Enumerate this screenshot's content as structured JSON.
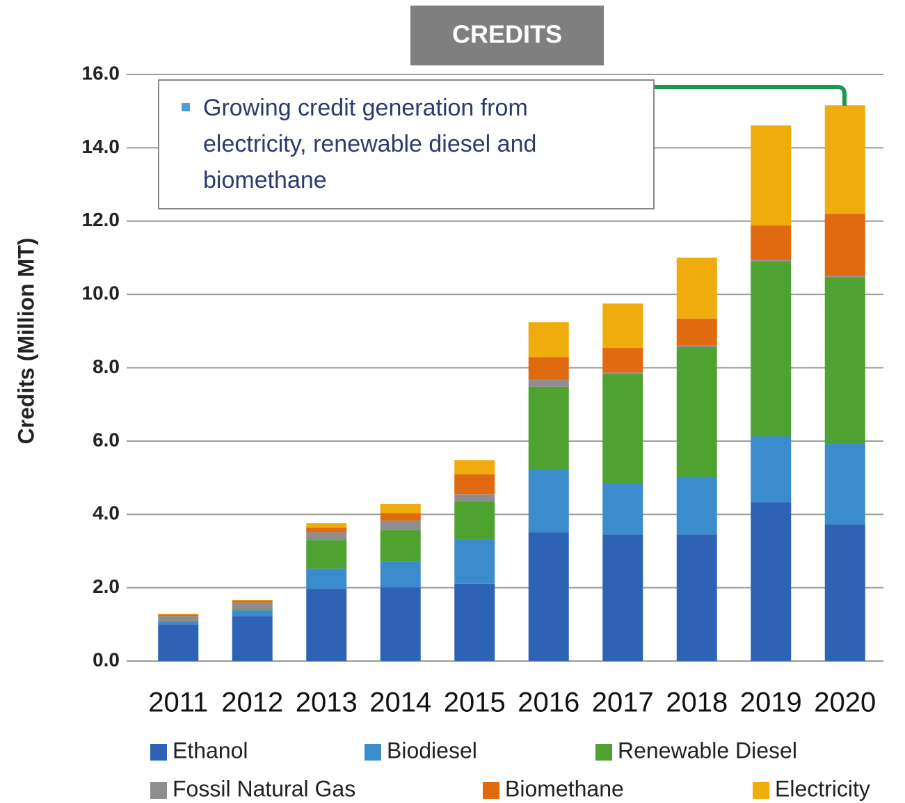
{
  "chart_data": {
    "type": "stacked_bar",
    "title": "CREDITS",
    "ylabel": "Credits (Million MT)",
    "annotation": [
      "Growing credit generation from",
      "electricity, renewable diesel and",
      "biomethane"
    ],
    "categories": [
      "2011",
      "2012",
      "2013",
      "2014",
      "2015",
      "2016",
      "2017",
      "2018",
      "2019",
      "2020"
    ],
    "series": [
      {
        "name": "Ethanol",
        "color": "#2e62b4",
        "values": [
          1.0,
          1.23,
          1.97,
          2.01,
          2.11,
          3.51,
          3.45,
          3.45,
          4.33,
          3.72
        ]
      },
      {
        "name": "Biodiesel",
        "color": "#3a8ccc",
        "values": [
          0.08,
          0.15,
          0.55,
          0.72,
          1.21,
          1.71,
          1.39,
          1.58,
          1.8,
          2.2
        ]
      },
      {
        "name": "Renewable Diesel",
        "color": "#4ea22f",
        "values": [
          0.0,
          0.04,
          0.78,
          0.84,
          1.04,
          2.26,
          2.98,
          3.53,
          4.78,
          4.55
        ]
      },
      {
        "name": "Fossil Natural Gas",
        "color": "#8e8e8e",
        "values": [
          0.15,
          0.18,
          0.21,
          0.26,
          0.19,
          0.19,
          0.05,
          0.05,
          0.04,
          0.04
        ]
      },
      {
        "name": "Biomethane",
        "color": "#e06a0f",
        "values": [
          0.04,
          0.05,
          0.13,
          0.21,
          0.55,
          0.62,
          0.67,
          0.73,
          0.93,
          1.69
        ]
      },
      {
        "name": "Electricity",
        "color": "#f0ac0c",
        "values": [
          0.02,
          0.02,
          0.12,
          0.25,
          0.38,
          0.95,
          1.21,
          1.66,
          2.73,
          2.96
        ]
      }
    ],
    "ylim": [
      0,
      16
    ],
    "yticks": [
      {
        "value": 0,
        "label": "0.0"
      },
      {
        "value": 2,
        "label": "2.0"
      },
      {
        "value": 4,
        "label": "4.0"
      },
      {
        "value": 6,
        "label": "6.0"
      },
      {
        "value": 8,
        "label": "8.0"
      },
      {
        "value": 10,
        "label": "10.0"
      },
      {
        "value": 12,
        "label": "12.0"
      },
      {
        "value": 14,
        "label": "14.0"
      },
      {
        "value": 16,
        "label": "16.0"
      }
    ],
    "grid": true
  }
}
